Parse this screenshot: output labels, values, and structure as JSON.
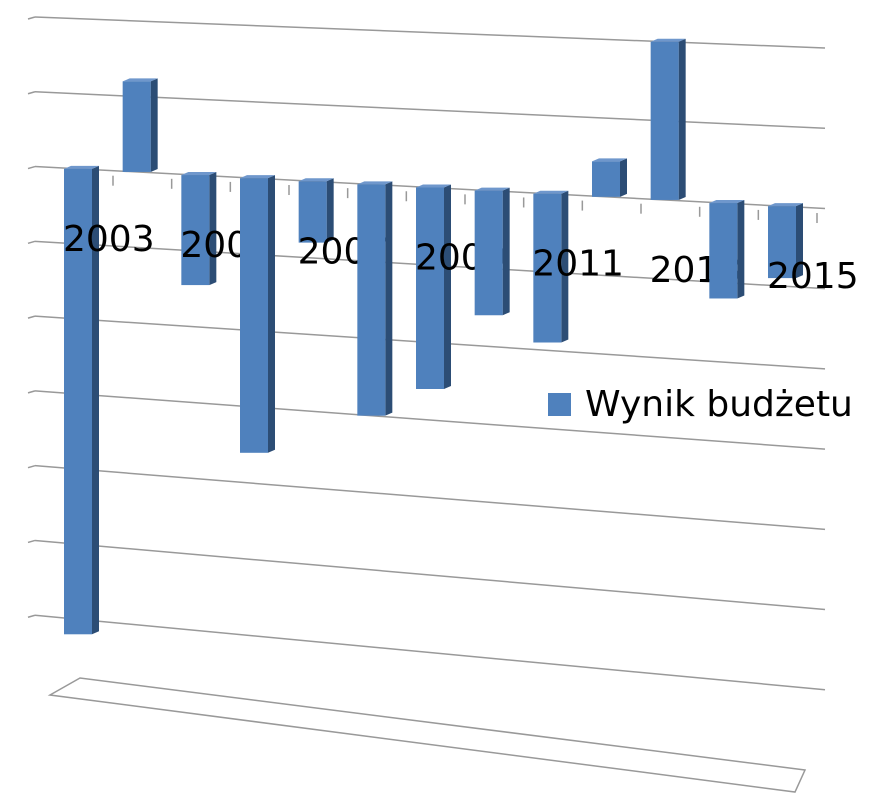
{
  "chart_data": {
    "type": "bar3d",
    "categories": [
      "2003",
      null,
      "2005",
      null,
      "2007",
      null,
      "2009",
      null,
      "2011",
      null,
      "2013",
      null,
      "2015"
    ],
    "series": [
      {
        "name": "Wynik budżetu",
        "color": "#4f81bd",
        "values": [
          -6.2,
          1.2,
          -1.45,
          -3.6,
          -0.8,
          -3.0,
          -2.6,
          -1.6,
          -1.9,
          0.45,
          2.0,
          -1.2,
          -0.9
        ]
      }
    ],
    "ylim": [
      -7,
      2
    ],
    "yticks": [
      -7,
      -6,
      -5,
      -4,
      -3,
      -2,
      -1,
      0,
      1,
      2
    ],
    "grid": true,
    "legend": "right"
  }
}
